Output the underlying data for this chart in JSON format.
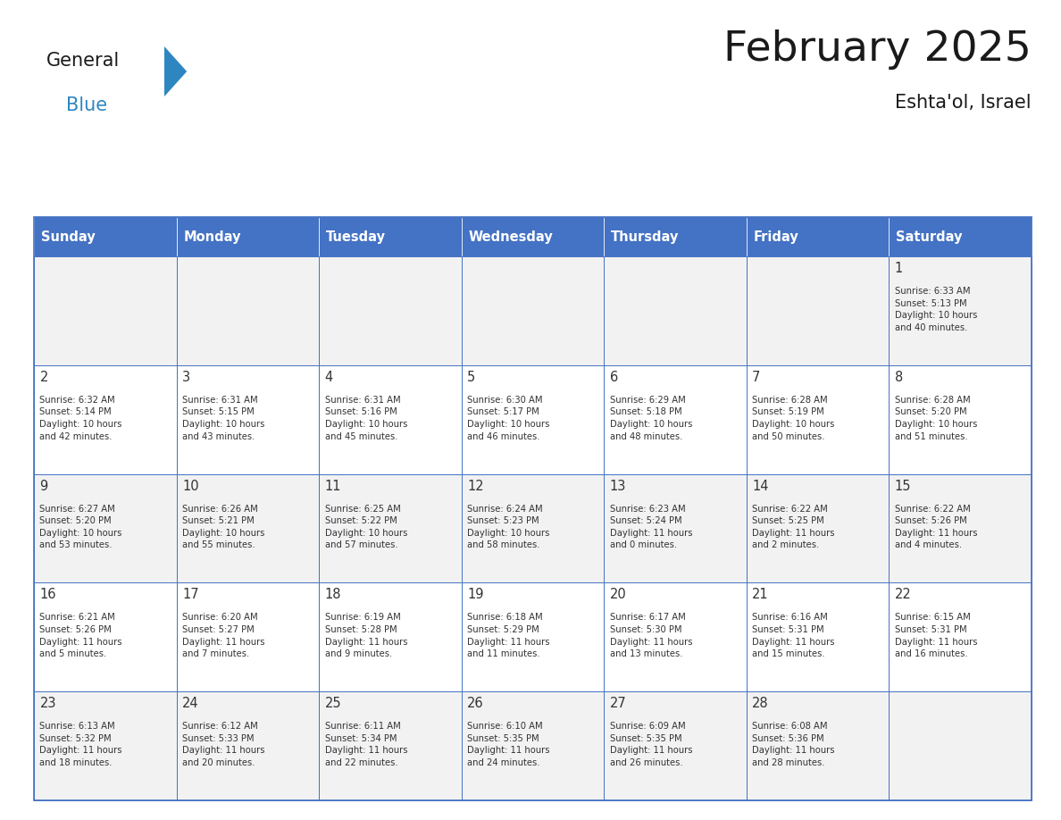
{
  "title": "February 2025",
  "subtitle": "Eshta'ol, Israel",
  "days_of_week": [
    "Sunday",
    "Monday",
    "Tuesday",
    "Wednesday",
    "Thursday",
    "Friday",
    "Saturday"
  ],
  "header_bg": "#4472C4",
  "header_text": "#FFFFFF",
  "cell_bg_odd": "#F2F2F2",
  "cell_bg_even": "#FFFFFF",
  "border_color": "#4472C4",
  "text_color": "#333333",
  "title_color": "#1a1a1a",
  "logo_general_color": "#1a1a1a",
  "logo_blue_color": "#2E86C1",
  "logo_triangle_color": "#2E86C1",
  "calendar_data": [
    [
      {
        "day": null,
        "sunrise": null,
        "sunset": null,
        "daylight": null
      },
      {
        "day": null,
        "sunrise": null,
        "sunset": null,
        "daylight": null
      },
      {
        "day": null,
        "sunrise": null,
        "sunset": null,
        "daylight": null
      },
      {
        "day": null,
        "sunrise": null,
        "sunset": null,
        "daylight": null
      },
      {
        "day": null,
        "sunrise": null,
        "sunset": null,
        "daylight": null
      },
      {
        "day": null,
        "sunrise": null,
        "sunset": null,
        "daylight": null
      },
      {
        "day": 1,
        "sunrise": "6:33 AM",
        "sunset": "5:13 PM",
        "daylight": "10 hours\nand 40 minutes."
      }
    ],
    [
      {
        "day": 2,
        "sunrise": "6:32 AM",
        "sunset": "5:14 PM",
        "daylight": "10 hours\nand 42 minutes."
      },
      {
        "day": 3,
        "sunrise": "6:31 AM",
        "sunset": "5:15 PM",
        "daylight": "10 hours\nand 43 minutes."
      },
      {
        "day": 4,
        "sunrise": "6:31 AM",
        "sunset": "5:16 PM",
        "daylight": "10 hours\nand 45 minutes."
      },
      {
        "day": 5,
        "sunrise": "6:30 AM",
        "sunset": "5:17 PM",
        "daylight": "10 hours\nand 46 minutes."
      },
      {
        "day": 6,
        "sunrise": "6:29 AM",
        "sunset": "5:18 PM",
        "daylight": "10 hours\nand 48 minutes."
      },
      {
        "day": 7,
        "sunrise": "6:28 AM",
        "sunset": "5:19 PM",
        "daylight": "10 hours\nand 50 minutes."
      },
      {
        "day": 8,
        "sunrise": "6:28 AM",
        "sunset": "5:20 PM",
        "daylight": "10 hours\nand 51 minutes."
      }
    ],
    [
      {
        "day": 9,
        "sunrise": "6:27 AM",
        "sunset": "5:20 PM",
        "daylight": "10 hours\nand 53 minutes."
      },
      {
        "day": 10,
        "sunrise": "6:26 AM",
        "sunset": "5:21 PM",
        "daylight": "10 hours\nand 55 minutes."
      },
      {
        "day": 11,
        "sunrise": "6:25 AM",
        "sunset": "5:22 PM",
        "daylight": "10 hours\nand 57 minutes."
      },
      {
        "day": 12,
        "sunrise": "6:24 AM",
        "sunset": "5:23 PM",
        "daylight": "10 hours\nand 58 minutes."
      },
      {
        "day": 13,
        "sunrise": "6:23 AM",
        "sunset": "5:24 PM",
        "daylight": "11 hours\nand 0 minutes."
      },
      {
        "day": 14,
        "sunrise": "6:22 AM",
        "sunset": "5:25 PM",
        "daylight": "11 hours\nand 2 minutes."
      },
      {
        "day": 15,
        "sunrise": "6:22 AM",
        "sunset": "5:26 PM",
        "daylight": "11 hours\nand 4 minutes."
      }
    ],
    [
      {
        "day": 16,
        "sunrise": "6:21 AM",
        "sunset": "5:26 PM",
        "daylight": "11 hours\nand 5 minutes."
      },
      {
        "day": 17,
        "sunrise": "6:20 AM",
        "sunset": "5:27 PM",
        "daylight": "11 hours\nand 7 minutes."
      },
      {
        "day": 18,
        "sunrise": "6:19 AM",
        "sunset": "5:28 PM",
        "daylight": "11 hours\nand 9 minutes."
      },
      {
        "day": 19,
        "sunrise": "6:18 AM",
        "sunset": "5:29 PM",
        "daylight": "11 hours\nand 11 minutes."
      },
      {
        "day": 20,
        "sunrise": "6:17 AM",
        "sunset": "5:30 PM",
        "daylight": "11 hours\nand 13 minutes."
      },
      {
        "day": 21,
        "sunrise": "6:16 AM",
        "sunset": "5:31 PM",
        "daylight": "11 hours\nand 15 minutes."
      },
      {
        "day": 22,
        "sunrise": "6:15 AM",
        "sunset": "5:31 PM",
        "daylight": "11 hours\nand 16 minutes."
      }
    ],
    [
      {
        "day": 23,
        "sunrise": "6:13 AM",
        "sunset": "5:32 PM",
        "daylight": "11 hours\nand 18 minutes."
      },
      {
        "day": 24,
        "sunrise": "6:12 AM",
        "sunset": "5:33 PM",
        "daylight": "11 hours\nand 20 minutes."
      },
      {
        "day": 25,
        "sunrise": "6:11 AM",
        "sunset": "5:34 PM",
        "daylight": "11 hours\nand 22 minutes."
      },
      {
        "day": 26,
        "sunrise": "6:10 AM",
        "sunset": "5:35 PM",
        "daylight": "11 hours\nand 24 minutes."
      },
      {
        "day": 27,
        "sunrise": "6:09 AM",
        "sunset": "5:35 PM",
        "daylight": "11 hours\nand 26 minutes."
      },
      {
        "day": 28,
        "sunrise": "6:08 AM",
        "sunset": "5:36 PM",
        "daylight": "11 hours\nand 28 minutes."
      },
      {
        "day": null,
        "sunrise": null,
        "sunset": null,
        "daylight": null
      }
    ]
  ]
}
